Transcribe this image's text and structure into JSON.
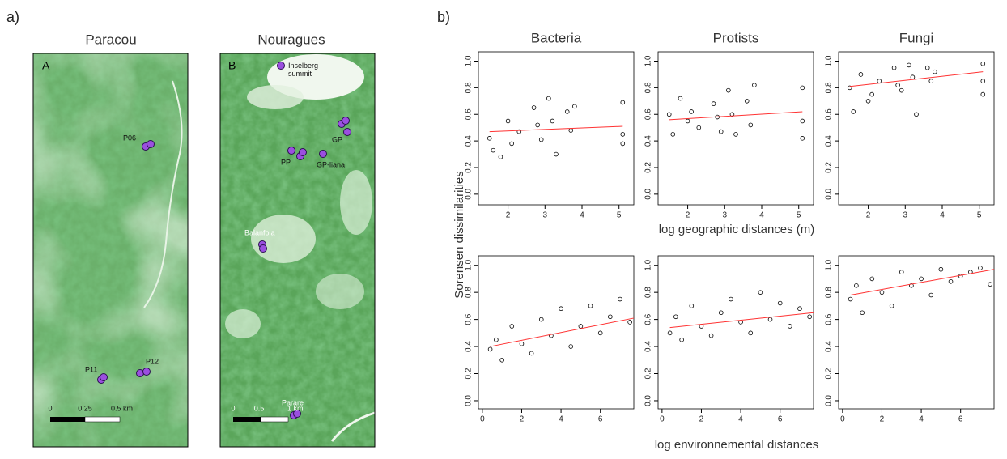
{
  "figure_a": {
    "label": "a)",
    "maps": [
      {
        "title": "Paracou",
        "letter": "A",
        "scale": [
          "0",
          "0.25",
          "0.5 km"
        ],
        "sites": [
          "P06",
          "P11",
          "P12"
        ]
      },
      {
        "title": "Nouragues",
        "letter": "B",
        "scale": [
          "0",
          "0.5",
          "1 km"
        ],
        "sites": [
          "Inselberg summit",
          "GP",
          "PP",
          "GP-liana",
          "Balanfoia",
          "Parare"
        ]
      }
    ]
  },
  "figure_b": {
    "label": "b)",
    "y_label": "Sorensen dissimilarities",
    "x_label_top": "log geographic distances (m)",
    "x_label_bottom": "log environnemental distances"
  },
  "chart_data": [
    {
      "type": "scatter",
      "title": "Bacteria",
      "xlim": [
        1.2,
        5.4
      ],
      "ylim": [
        -0.08,
        1.07
      ],
      "xticks": [
        2,
        3,
        4,
        5
      ],
      "yticks": [
        {
          "value": 0,
          "label": "0.0"
        },
        0.2,
        0.4,
        0.6,
        0.8,
        {
          "value": 1,
          "label": "1.0"
        }
      ],
      "color": "#000000",
      "x": [
        1.5,
        1.6,
        1.8,
        2.0,
        2.1,
        2.3,
        2.7,
        2.8,
        2.9,
        3.1,
        3.2,
        3.3,
        3.6,
        3.7,
        3.8,
        5.1,
        5.1,
        5.1
      ],
      "values": [
        0.42,
        0.33,
        0.28,
        0.55,
        0.38,
        0.47,
        0.65,
        0.52,
        0.41,
        0.72,
        0.55,
        0.3,
        0.62,
        0.48,
        0.66,
        0.69,
        0.45,
        0.38
      ],
      "trend": {
        "x": [
          1.5,
          5.1
        ],
        "values": [
          0.47,
          0.51
        ],
        "color": "#ff3333"
      }
    },
    {
      "type": "scatter",
      "title": "Protists",
      "xlim": [
        1.2,
        5.4
      ],
      "ylim": [
        -0.08,
        1.07
      ],
      "xticks": [
        2,
        3,
        4,
        5
      ],
      "yticks": [
        {
          "value": 0,
          "label": "0.0"
        },
        0.2,
        0.4,
        0.6,
        0.8,
        {
          "value": 1,
          "label": "1.0"
        }
      ],
      "color": "#000000",
      "x": [
        1.5,
        1.6,
        1.8,
        2.0,
        2.1,
        2.3,
        2.7,
        2.8,
        2.9,
        3.1,
        3.2,
        3.3,
        3.6,
        3.7,
        3.8,
        5.1,
        5.1,
        5.1
      ],
      "values": [
        0.6,
        0.45,
        0.72,
        0.55,
        0.62,
        0.5,
        0.68,
        0.58,
        0.47,
        0.78,
        0.6,
        0.45,
        0.7,
        0.52,
        0.82,
        0.8,
        0.55,
        0.42
      ],
      "trend": {
        "x": [
          1.5,
          5.1
        ],
        "values": [
          0.56,
          0.62
        ],
        "color": "#ff3333"
      }
    },
    {
      "type": "scatter",
      "title": "Fungi",
      "xlim": [
        1.2,
        5.4
      ],
      "ylim": [
        -0.08,
        1.07
      ],
      "xticks": [
        2,
        3,
        4,
        5
      ],
      "yticks": [
        {
          "value": 0,
          "label": "0.0"
        },
        0.2,
        0.4,
        0.6,
        0.8,
        {
          "value": 1,
          "label": "1.0"
        }
      ],
      "color": "#000000",
      "x": [
        1.5,
        1.6,
        1.8,
        2.0,
        2.1,
        2.3,
        2.7,
        2.8,
        2.9,
        3.1,
        3.2,
        3.3,
        3.6,
        3.7,
        3.8,
        5.1,
        5.1,
        5.1
      ],
      "values": [
        0.8,
        0.62,
        0.9,
        0.7,
        0.75,
        0.85,
        0.95,
        0.82,
        0.78,
        0.97,
        0.88,
        0.6,
        0.95,
        0.85,
        0.92,
        0.98,
        0.85,
        0.75
      ],
      "trend": {
        "x": [
          1.5,
          5.1
        ],
        "values": [
          0.81,
          0.92
        ],
        "color": "#ff3333"
      }
    },
    {
      "type": "scatter",
      "xlim": [
        -0.2,
        7.7
      ],
      "ylim": [
        -0.06,
        1.07
      ],
      "xticks": [
        0,
        2,
        4,
        6
      ],
      "yticks": [
        {
          "value": 0,
          "label": "0.0"
        },
        0.2,
        0.4,
        0.6,
        0.8,
        {
          "value": 1,
          "label": "1.0"
        }
      ],
      "color": "#000000",
      "x": [
        0.4,
        0.7,
        1.0,
        1.5,
        2.0,
        2.5,
        3.0,
        3.5,
        4.0,
        4.5,
        5.0,
        5.5,
        6.0,
        6.5,
        7.0,
        7.5
      ],
      "values": [
        0.38,
        0.45,
        0.3,
        0.55,
        0.42,
        0.35,
        0.6,
        0.48,
        0.68,
        0.4,
        0.55,
        0.7,
        0.5,
        0.62,
        0.75,
        0.58
      ],
      "trend": {
        "x": [
          0.4,
          7.7
        ],
        "values": [
          0.4,
          0.61
        ],
        "color": "#ff3333"
      }
    },
    {
      "type": "scatter",
      "xlim": [
        -0.2,
        7.7
      ],
      "ylim": [
        -0.06,
        1.07
      ],
      "xticks": [
        0,
        2,
        4,
        6
      ],
      "yticks": [
        {
          "value": 0,
          "label": "0.0"
        },
        0.2,
        0.4,
        0.6,
        0.8,
        {
          "value": 1,
          "label": "1.0"
        }
      ],
      "color": "#000000",
      "x": [
        0.4,
        0.7,
        1.0,
        1.5,
        2.0,
        2.5,
        3.0,
        3.5,
        4.0,
        4.5,
        5.0,
        5.5,
        6.0,
        6.5,
        7.0,
        7.5
      ],
      "values": [
        0.5,
        0.62,
        0.45,
        0.7,
        0.55,
        0.48,
        0.65,
        0.75,
        0.58,
        0.5,
        0.8,
        0.6,
        0.72,
        0.55,
        0.68,
        0.62
      ],
      "trend": {
        "x": [
          0.4,
          7.7
        ],
        "values": [
          0.54,
          0.65
        ],
        "color": "#ff3333"
      }
    },
    {
      "type": "scatter",
      "xlim": [
        -0.2,
        7.7
      ],
      "ylim": [
        -0.06,
        1.07
      ],
      "xticks": [
        0,
        2,
        4,
        6
      ],
      "yticks": [
        {
          "value": 0,
          "label": "0.0"
        },
        0.2,
        0.4,
        0.6,
        0.8,
        {
          "value": 1,
          "label": "1.0"
        }
      ],
      "color": "#000000",
      "x": [
        0.4,
        0.7,
        1.0,
        1.5,
        2.0,
        2.5,
        3.0,
        3.5,
        4.0,
        4.5,
        5.0,
        5.5,
        6.0,
        6.5,
        7.0,
        7.5
      ],
      "values": [
        0.75,
        0.85,
        0.65,
        0.9,
        0.8,
        0.7,
        0.95,
        0.85,
        0.9,
        0.78,
        0.97,
        0.88,
        0.92,
        0.95,
        0.98,
        0.86
      ],
      "trend": {
        "x": [
          0.4,
          7.7
        ],
        "values": [
          0.78,
          0.97
        ],
        "color": "#ff3333"
      }
    }
  ]
}
